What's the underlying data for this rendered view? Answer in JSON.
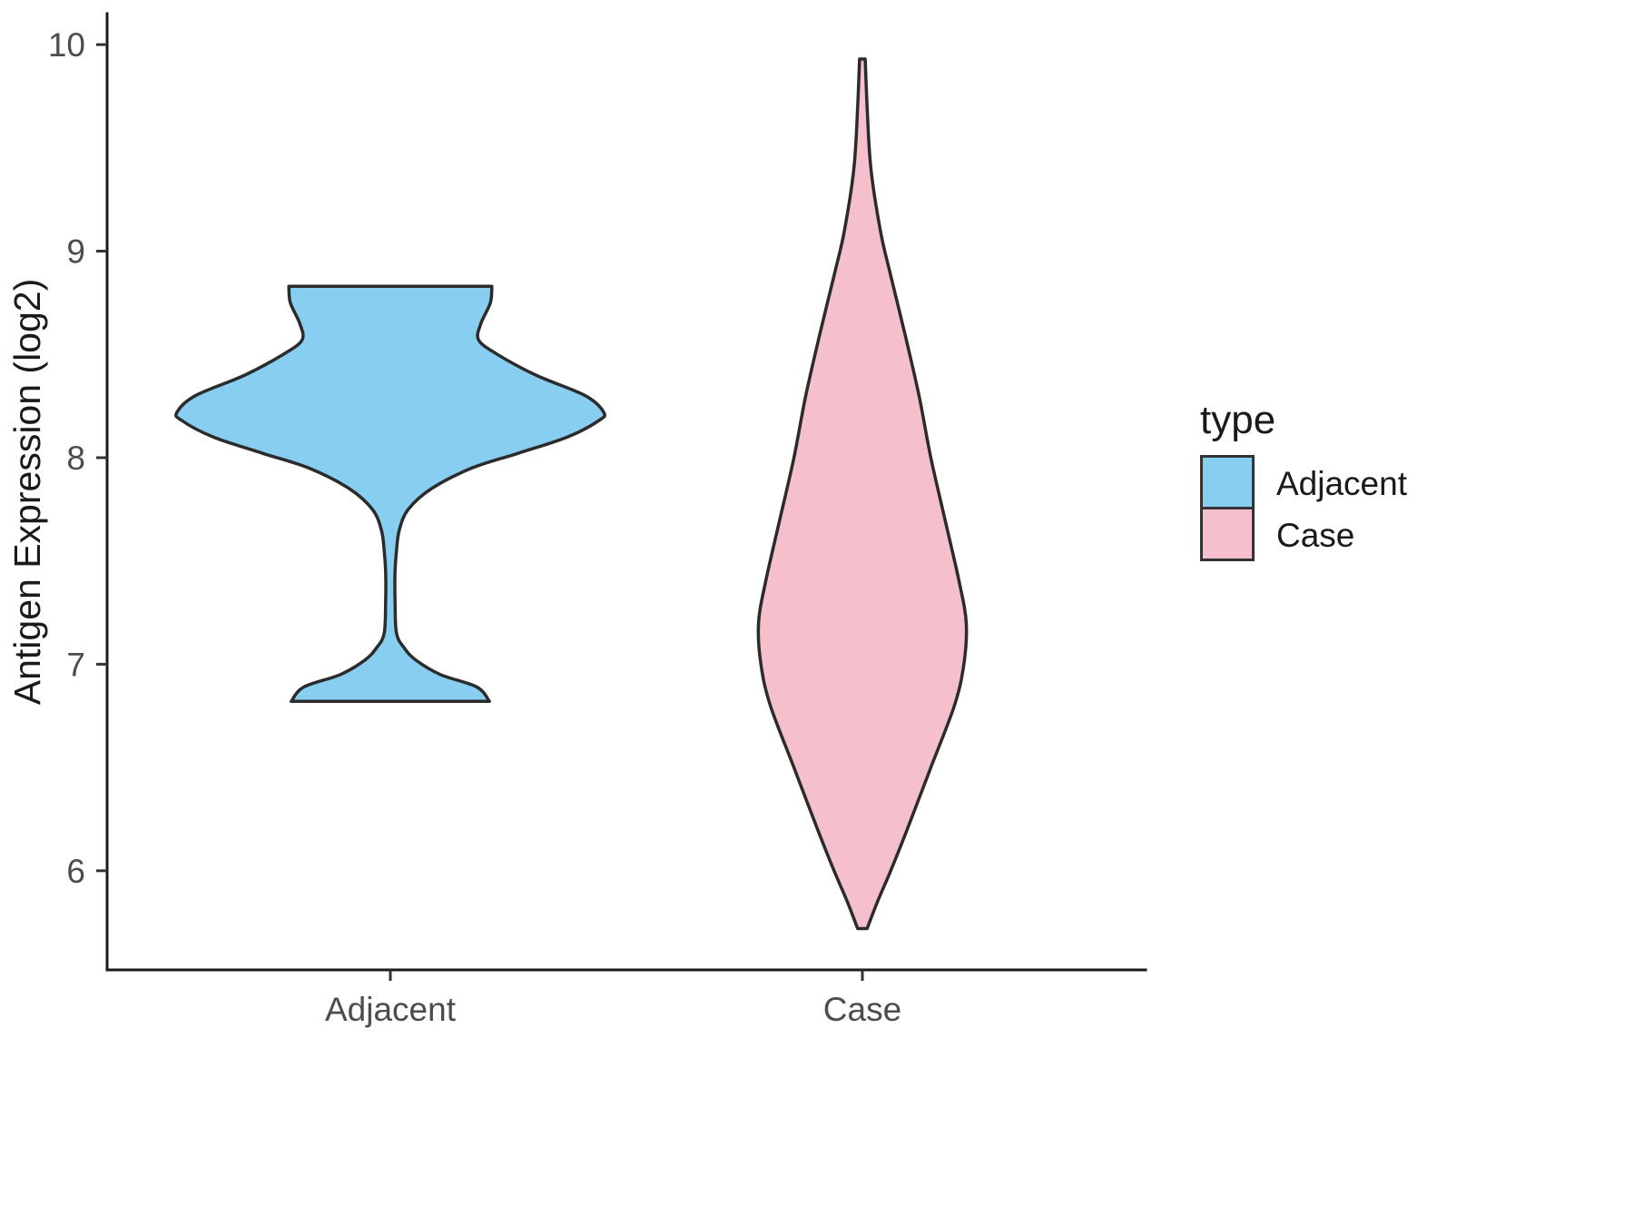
{
  "chart_data": {
    "type": "violin",
    "title": "",
    "xlabel": "",
    "ylabel": "Antigen Expression (log2)",
    "categories": [
      "Adjacent",
      "Case"
    ],
    "ylim": [
      5.52,
      10.15
    ],
    "yticks": [
      6,
      7,
      8,
      9,
      10
    ],
    "grid": false,
    "legend": {
      "title": "type",
      "position": "right",
      "entries": [
        {
          "label": "Adjacent",
          "color": "#87CEF0"
        },
        {
          "label": "Case",
          "color": "#F5BFCB"
        }
      ]
    },
    "series": [
      {
        "name": "Adjacent",
        "fill": "#87CEF0",
        "outline": "#2b2b2b",
        "center": 1,
        "range": [
          6.82,
          8.83
        ],
        "profile": [
          [
            6.82,
            0.21
          ],
          [
            6.89,
            0.183
          ],
          [
            6.95,
            0.106
          ],
          [
            7.02,
            0.054
          ],
          [
            7.08,
            0.029
          ],
          [
            7.15,
            0.013
          ],
          [
            7.3,
            0.01
          ],
          [
            7.45,
            0.01
          ],
          [
            7.55,
            0.013
          ],
          [
            7.65,
            0.019
          ],
          [
            7.75,
            0.038
          ],
          [
            7.85,
            0.087
          ],
          [
            7.95,
            0.173
          ],
          [
            8.02,
            0.269
          ],
          [
            8.1,
            0.375
          ],
          [
            8.18,
            0.442
          ],
          [
            8.22,
            0.452
          ],
          [
            8.3,
            0.413
          ],
          [
            8.4,
            0.308
          ],
          [
            8.5,
            0.227
          ],
          [
            8.57,
            0.187
          ],
          [
            8.65,
            0.192
          ],
          [
            8.75,
            0.212
          ],
          [
            8.83,
            0.215
          ]
        ]
      },
      {
        "name": "Case",
        "fill": "#F5BFCB",
        "outline": "#2b2b2b",
        "center": 2,
        "range": [
          5.72,
          9.93
        ],
        "profile": [
          [
            5.72,
            0.01
          ],
          [
            5.85,
            0.032
          ],
          [
            6.0,
            0.06
          ],
          [
            6.2,
            0.095
          ],
          [
            6.5,
            0.145
          ],
          [
            6.8,
            0.195
          ],
          [
            7.0,
            0.215
          ],
          [
            7.2,
            0.22
          ],
          [
            7.4,
            0.205
          ],
          [
            7.7,
            0.175
          ],
          [
            8.0,
            0.145
          ],
          [
            8.3,
            0.12
          ],
          [
            8.6,
            0.09
          ],
          [
            8.9,
            0.058
          ],
          [
            9.1,
            0.038
          ],
          [
            9.4,
            0.018
          ],
          [
            9.7,
            0.01
          ],
          [
            9.93,
            0.006
          ]
        ]
      }
    ],
    "axis_style": {
      "line_color": "#1a1a1a",
      "tick_color": "#333333",
      "tick_label_color": "#4d4d4d",
      "title_color": "#1a1a1a"
    }
  }
}
